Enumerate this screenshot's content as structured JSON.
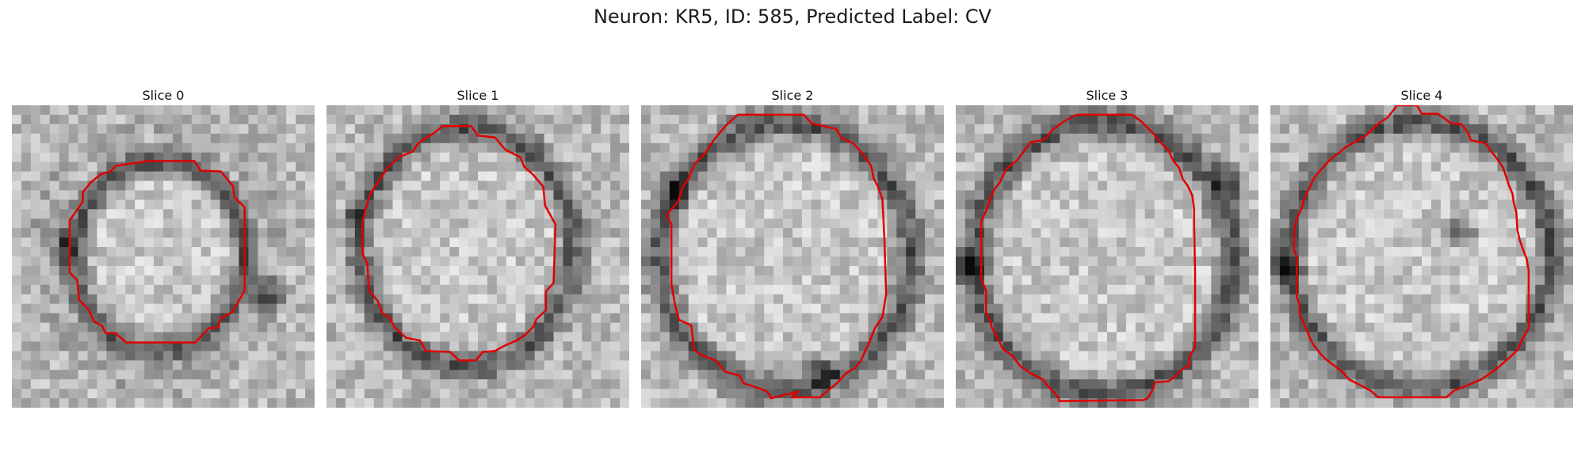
{
  "figure": {
    "title": "Neuron: KR5, ID: 585, Predicted Label: CV",
    "outline_color": "#e00000"
  },
  "panels": [
    {
      "title": "Slice 0",
      "contour": "clean circle"
    },
    {
      "title": "Slice 1",
      "contour": "clean circle"
    },
    {
      "title": "Slice 2",
      "contour": "gap at bottom"
    },
    {
      "title": "Slice 3",
      "contour": "gap at bottom"
    },
    {
      "title": "Slice 4",
      "contour": "clean circle"
    }
  ]
}
